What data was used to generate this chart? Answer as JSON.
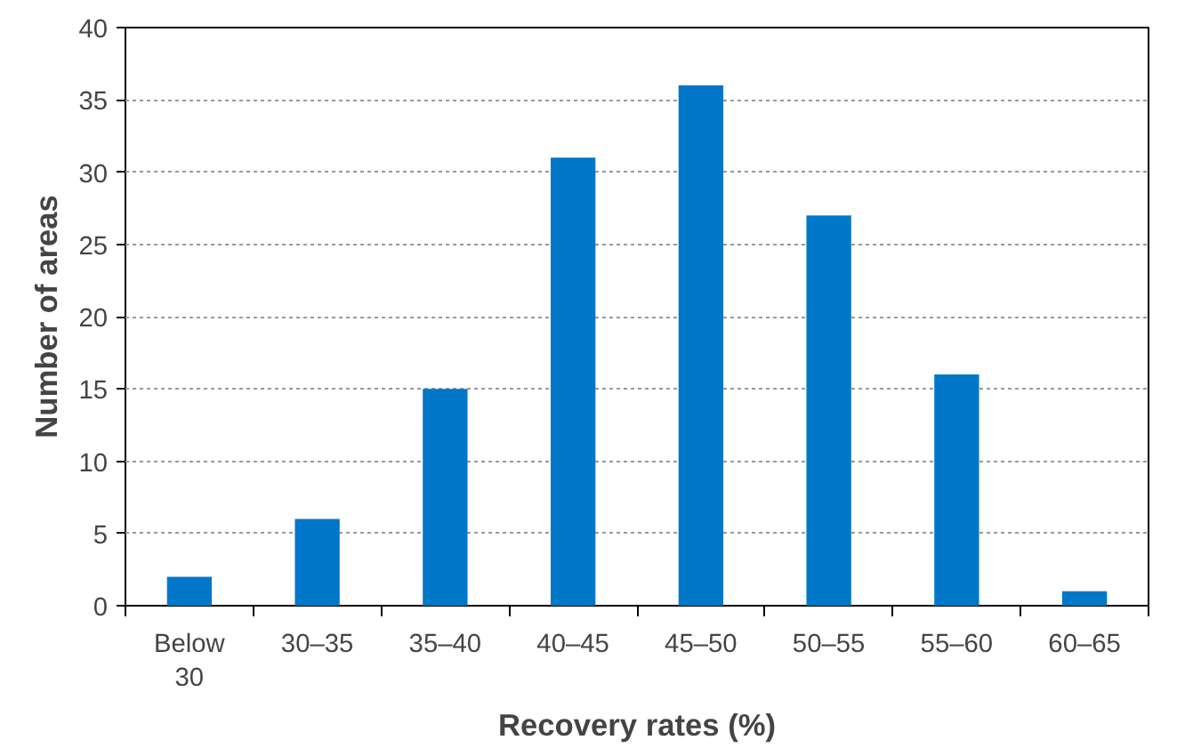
{
  "chart_data": {
    "type": "bar",
    "xlabel": "Recovery rates (%)",
    "ylabel": "Number of areas",
    "categories": [
      "Below 30",
      "30–35",
      "35–40",
      "40–45",
      "45–50",
      "50–55",
      "55–60",
      "60–65"
    ],
    "values": [
      2,
      6,
      15,
      31,
      36,
      27,
      16,
      1
    ],
    "color": "#0077c8",
    "ylim": [
      0,
      40
    ],
    "yticks": [
      0,
      5,
      10,
      15,
      20,
      25,
      30,
      35,
      40
    ],
    "grid": "y"
  }
}
